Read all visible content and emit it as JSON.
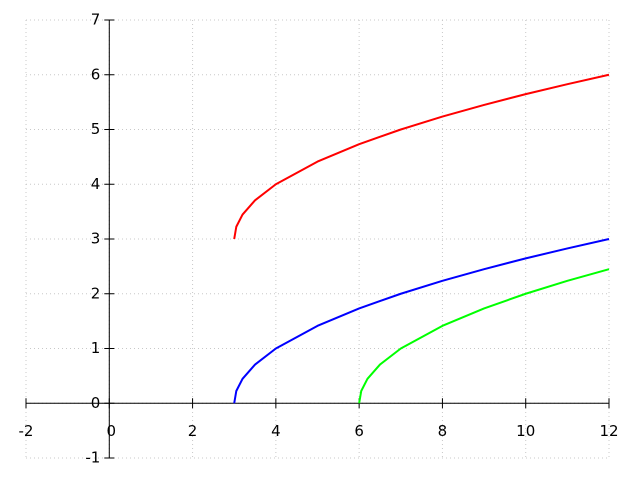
{
  "chart_data": {
    "type": "line",
    "xlim": [
      -2,
      12
    ],
    "ylim": [
      -1,
      7
    ],
    "xticks": [
      -2,
      0,
      2,
      4,
      6,
      8,
      10,
      12
    ],
    "yticks": [
      -1,
      0,
      1,
      2,
      3,
      4,
      5,
      6,
      7
    ],
    "grid": true,
    "series": [
      {
        "color": "#ff0000",
        "x": [
          3,
          3.05,
          3.2,
          3.5,
          4,
          5,
          6,
          7,
          8,
          9,
          10,
          11,
          12
        ],
        "values": [
          3,
          3.224,
          3.447,
          3.707,
          4,
          4.414,
          4.732,
          5,
          5.236,
          5.449,
          5.646,
          5.828,
          6
        ]
      },
      {
        "color": "#0000ff",
        "x": [
          3,
          3.05,
          3.2,
          3.5,
          4,
          5,
          6,
          7,
          8,
          9,
          10,
          11,
          12
        ],
        "values": [
          0,
          0.224,
          0.447,
          0.707,
          1,
          1.414,
          1.732,
          2,
          2.236,
          2.449,
          2.646,
          2.828,
          3
        ]
      },
      {
        "color": "#00ff00",
        "x": [
          6,
          6.05,
          6.2,
          6.5,
          7,
          8,
          9,
          10,
          11,
          12
        ],
        "values": [
          0,
          0.224,
          0.447,
          0.707,
          1,
          1.414,
          1.732,
          2,
          2.236,
          2.449
        ]
      }
    ]
  }
}
